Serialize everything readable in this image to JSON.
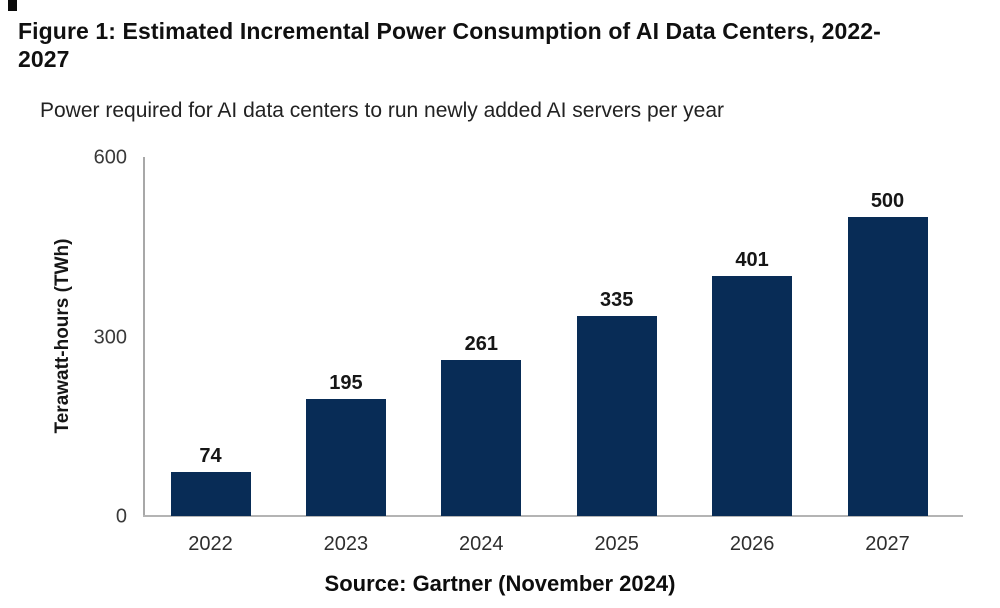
{
  "figure": {
    "title_line1": "Figure 1: Estimated Incremental Power Consumption of AI Data Centers, 2022-",
    "title_line2": "2027",
    "subtitle": "Power required for AI data centers to run newly added AI servers per year",
    "source": "Source: Gartner (November 2024)"
  },
  "colors": {
    "bar": "#082c56",
    "axis_line": "#a8a8a8",
    "baseline": "#b4b4b4",
    "title_text": "#101010",
    "tick_text": "#3a3a3a"
  },
  "chart_data": {
    "type": "bar",
    "categories": [
      "2022",
      "2023",
      "2024",
      "2025",
      "2026",
      "2027"
    ],
    "values": [
      74,
      195,
      261,
      335,
      401,
      500
    ],
    "title": "Power required for AI data centers to run newly added AI servers per year",
    "xlabel": "",
    "ylabel": "Terawatt-hours (TWh)",
    "ylim": [
      0,
      600
    ],
    "yticks": [
      0,
      300,
      600
    ],
    "grid": false,
    "legend": "none",
    "data_labels_shown": true,
    "source": "Source: Gartner (November 2024)"
  }
}
